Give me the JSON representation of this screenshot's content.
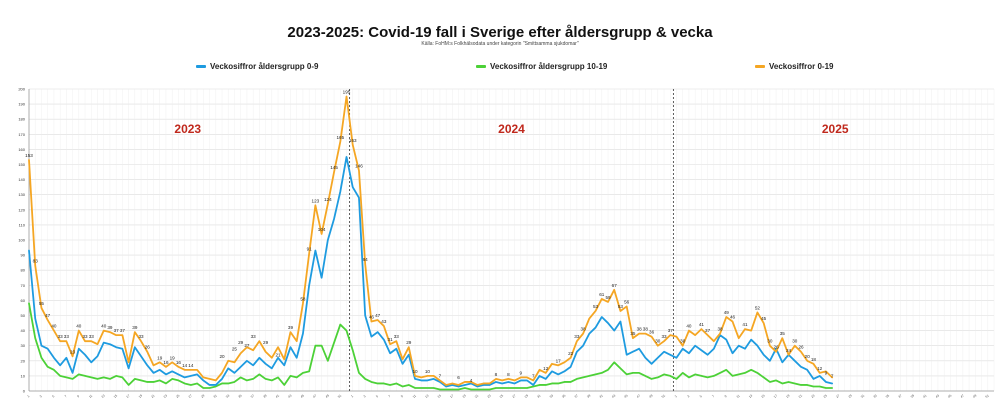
{
  "title": "2023-2025: Covid-19 fall i Sverige efter åldersgrupp & vecka",
  "subtitle": "Källa: FoHM:s Folkhälsodata under kategorin \"Smittsamma sjukdomar\"",
  "legend": [
    {
      "label": "Veckosiffror åldersgrupp 0-9",
      "color": "#1e9be0"
    },
    {
      "label": "Veckosiffror åldersgrupp 10-19",
      "color": "#4cd137"
    },
    {
      "label": "Veckosiffror 0-19",
      "color": "#f5a623"
    }
  ],
  "chart_data": {
    "type": "line",
    "y_ticks": [
      0,
      10,
      20,
      30,
      40,
      50,
      60,
      70,
      80,
      90,
      100,
      110,
      120,
      130,
      140,
      150,
      160,
      170,
      180,
      190,
      200
    ],
    "ylim": [
      0,
      200
    ],
    "grid": true,
    "legend_position": "top",
    "year_labels": [
      "2023",
      "2024",
      "2025"
    ],
    "year_label_color": "#c0281c",
    "x_weeks": 156,
    "year_boundaries_after_week": [
      52,
      104
    ],
    "series": [
      {
        "name": "Veckosiffror åldersgrupp 0-9",
        "color": "#1e9be0",
        "values": [
          93,
          48,
          30,
          28,
          22,
          17,
          22,
          12,
          28,
          24,
          19,
          23,
          32,
          31,
          29,
          28,
          15,
          29,
          23,
          17,
          12,
          14,
          11,
          13,
          11,
          9,
          10,
          11,
          7,
          4,
          4,
          8,
          15,
          12,
          16,
          20,
          17,
          22,
          18,
          15,
          22,
          17,
          29,
          22,
          38,
          70,
          93,
          75,
          100,
          114,
          132,
          155,
          135,
          128,
          50,
          36,
          39,
          34,
          25,
          28,
          18,
          24,
          8,
          7,
          7,
          8,
          6,
          3,
          4,
          3,
          4,
          5,
          3,
          4,
          4,
          6,
          5,
          6,
          5,
          7,
          7,
          4,
          10,
          8,
          13,
          11,
          13,
          16,
          26,
          30,
          38,
          42,
          49,
          45,
          40,
          46,
          24,
          26,
          28,
          22,
          18,
          22,
          26,
          24,
          22,
          28,
          25,
          30,
          27,
          24,
          28,
          37,
          34,
          25,
          30,
          28,
          34,
          30,
          24,
          20,
          28,
          19,
          24,
          20,
          16,
          14,
          8,
          10,
          6,
          5,
          3,
          2,
          1,
          0,
          0,
          0,
          0,
          0,
          0,
          0,
          0,
          0,
          0,
          0,
          0,
          0,
          0,
          0,
          0,
          0,
          0,
          0,
          0,
          0,
          0,
          0
        ],
        "visible_length": 130
      },
      {
        "name": "Veckosiffror åldersgrupp 10-19",
        "color": "#4cd137",
        "values": [
          58,
          35,
          22,
          16,
          14,
          10,
          9,
          8,
          11,
          10,
          9,
          8,
          9,
          8,
          10,
          9,
          4,
          8,
          7,
          6,
          6,
          7,
          5,
          8,
          7,
          5,
          4,
          5,
          2,
          2,
          3,
          5,
          5,
          6,
          9,
          7,
          8,
          11,
          8,
          7,
          9,
          4,
          10,
          9,
          12,
          13,
          30,
          30,
          20,
          32,
          44,
          40,
          27,
          12,
          8,
          6,
          5,
          5,
          4,
          5,
          3,
          4,
          2,
          2,
          2,
          2,
          1,
          1,
          1,
          1,
          2,
          1,
          1,
          1,
          1,
          2,
          2,
          2,
          2,
          2,
          2,
          3,
          4,
          4,
          5,
          5,
          6,
          6,
          8,
          9,
          10,
          11,
          12,
          14,
          19,
          15,
          11,
          12,
          12,
          10,
          8,
          9,
          11,
          10,
          8,
          12,
          9,
          11,
          10,
          9,
          10,
          12,
          14,
          10,
          11,
          12,
          14,
          12,
          9,
          6,
          7,
          5,
          6,
          5,
          4,
          4,
          3,
          3,
          2,
          2,
          1,
          1,
          0,
          0,
          0,
          0,
          0,
          0,
          0,
          0,
          0,
          0,
          0,
          0,
          0,
          0,
          0,
          0,
          0,
          0,
          0,
          0,
          0,
          0,
          0,
          0
        ],
        "visible_length": 130
      },
      {
        "name": "Veckosiffror 0-19",
        "color": "#f5a623",
        "values": [
          153,
          83,
          55,
          47,
          40,
          33,
          33,
          23,
          40,
          33,
          33,
          31,
          40,
          39,
          37,
          37,
          19,
          39,
          33,
          26,
          17,
          19,
          16,
          19,
          16,
          14,
          14,
          14,
          9,
          8,
          7,
          12,
          20,
          19,
          25,
          29,
          27,
          33,
          26,
          22,
          29,
          21,
          39,
          33,
          58,
          91,
          123,
          104,
          124,
          145,
          165,
          195,
          163,
          146,
          84,
          46,
          47,
          43,
          31,
          33,
          21,
          29,
          10,
          9,
          10,
          10,
          7,
          4,
          5,
          4,
          6,
          6,
          4,
          5,
          5,
          8,
          7,
          8,
          7,
          9,
          9,
          7,
          14,
          12,
          18,
          17,
          19,
          22,
          33,
          38,
          48,
          53,
          61,
          59,
          67,
          53,
          56,
          35,
          38,
          38,
          36,
          30,
          33,
          37,
          36,
          30,
          40,
          37,
          41,
          37,
          33,
          38,
          49,
          46,
          35,
          41,
          40,
          52,
          45,
          30,
          26,
          35,
          24,
          30,
          26,
          20,
          18,
          12,
          13,
          9,
          7,
          4,
          3,
          0,
          0,
          0,
          0,
          0,
          0,
          0,
          0,
          0,
          0,
          0,
          0,
          0,
          0,
          0,
          0,
          0,
          0,
          0,
          0,
          0,
          0,
          0
        ],
        "visible_length": 130
      }
    ],
    "data_labels_0_19": [
      {
        "week": 1,
        "value": 153
      },
      {
        "week": 2,
        "value": 83
      },
      {
        "week": 3,
        "value": 55
      },
      {
        "week": 4,
        "value": 47
      },
      {
        "week": 5,
        "value": 40
      },
      {
        "week": 6,
        "value": 33
      },
      {
        "week": 7,
        "value": 33
      },
      {
        "week": 8,
        "value": 23
      },
      {
        "week": 9,
        "value": 40
      },
      {
        "week": 10,
        "value": 33
      },
      {
        "week": 11,
        "value": 33
      },
      {
        "week": 13,
        "value": 40
      },
      {
        "week": 14,
        "value": 39
      },
      {
        "week": 15,
        "value": 37
      },
      {
        "week": 16,
        "value": 37
      },
      {
        "week": 18,
        "value": 39
      },
      {
        "week": 19,
        "value": 33
      },
      {
        "week": 20,
        "value": 26
      },
      {
        "week": 22,
        "value": 19
      },
      {
        "week": 23,
        "value": 16
      },
      {
        "week": 24,
        "value": 19
      },
      {
        "week": 25,
        "value": 16
      },
      {
        "week": 26,
        "value": 14
      },
      {
        "week": 27,
        "value": 14
      },
      {
        "week": 32,
        "value": 20
      },
      {
        "week": 34,
        "value": 25
      },
      {
        "week": 35,
        "value": 29
      },
      {
        "week": 36,
        "value": 27
      },
      {
        "week": 37,
        "value": 33
      },
      {
        "week": 39,
        "value": 29
      },
      {
        "week": 41,
        "value": 21
      },
      {
        "week": 43,
        "value": 39
      },
      {
        "week": 45,
        "value": 58
      },
      {
        "week": 46,
        "value": 91
      },
      {
        "week": 47,
        "value": 123
      },
      {
        "week": 48,
        "value": 104
      },
      {
        "week": 49,
        "value": 124
      },
      {
        "week": 50,
        "value": 145
      },
      {
        "week": 51,
        "value": 165
      },
      {
        "week": 52,
        "value": 195
      },
      {
        "week": 53,
        "value": 163
      },
      {
        "week": 54,
        "value": 146
      },
      {
        "week": 55,
        "value": 84
      },
      {
        "week": 56,
        "value": 46
      },
      {
        "week": 57,
        "value": 47
      },
      {
        "week": 58,
        "value": 43
      },
      {
        "week": 59,
        "value": 31
      },
      {
        "week": 60,
        "value": 33
      },
      {
        "week": 62,
        "value": 29
      },
      {
        "week": 63,
        "value": 10
      },
      {
        "week": 65,
        "value": 10
      },
      {
        "week": 67,
        "value": 7
      },
      {
        "week": 70,
        "value": 6
      },
      {
        "week": 72,
        "value": 4
      },
      {
        "week": 76,
        "value": 8
      },
      {
        "week": 78,
        "value": 8
      },
      {
        "week": 80,
        "value": 9
      },
      {
        "week": 82,
        "value": 7
      },
      {
        "week": 84,
        "value": 12
      },
      {
        "week": 86,
        "value": 17
      },
      {
        "week": 88,
        "value": 22
      },
      {
        "week": 89,
        "value": 33
      },
      {
        "week": 90,
        "value": 38
      },
      {
        "week": 92,
        "value": 53
      },
      {
        "week": 93,
        "value": 61
      },
      {
        "week": 94,
        "value": 59
      },
      {
        "week": 95,
        "value": 67
      },
      {
        "week": 96,
        "value": 53
      },
      {
        "week": 97,
        "value": 56
      },
      {
        "week": 98,
        "value": 35
      },
      {
        "week": 99,
        "value": 38
      },
      {
        "week": 100,
        "value": 38
      },
      {
        "week": 101,
        "value": 36
      },
      {
        "week": 102,
        "value": 30
      },
      {
        "week": 103,
        "value": 33
      },
      {
        "week": 104,
        "value": 37
      },
      {
        "week": 106,
        "value": 30
      },
      {
        "week": 107,
        "value": 40
      },
      {
        "week": 109,
        "value": 41
      },
      {
        "week": 110,
        "value": 37
      },
      {
        "week": 112,
        "value": 38
      },
      {
        "week": 113,
        "value": 49
      },
      {
        "week": 114,
        "value": 46
      },
      {
        "week": 116,
        "value": 41
      },
      {
        "week": 118,
        "value": 52
      },
      {
        "week": 119,
        "value": 45
      },
      {
        "week": 120,
        "value": 30
      },
      {
        "week": 121,
        "value": 26
      },
      {
        "week": 122,
        "value": 35
      },
      {
        "week": 123,
        "value": 24
      },
      {
        "week": 124,
        "value": 30
      },
      {
        "week": 125,
        "value": 26
      },
      {
        "week": 126,
        "value": 20
      },
      {
        "week": 127,
        "value": 18
      },
      {
        "week": 128,
        "value": 12
      },
      {
        "week": 129,
        "value": 9
      },
      {
        "week": 130,
        "value": 7
      }
    ]
  }
}
